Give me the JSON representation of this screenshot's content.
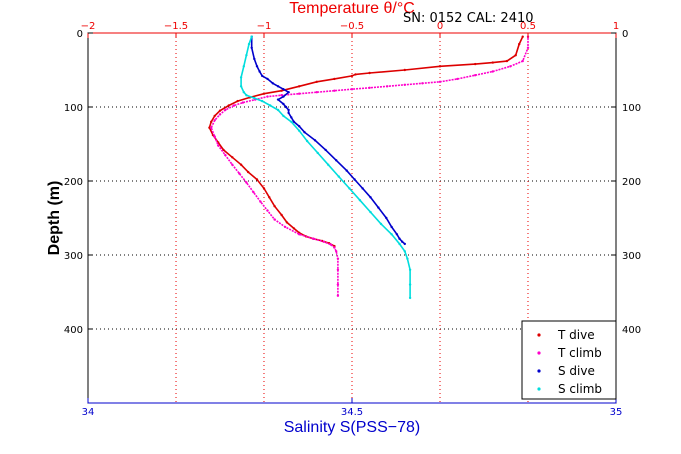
{
  "header": {
    "text": "SN: 0152  CAL: 2410"
  },
  "chart_data": {
    "type": "scatter",
    "bottom_axis": {
      "label": "Salinity S(PSS−78)",
      "range": [
        34,
        35
      ],
      "ticks": [
        "34",
        "34.5",
        "35"
      ],
      "ticks_values": [
        34,
        34.5,
        35
      ],
      "grid_values": [
        34,
        34.1667,
        34.3333,
        34.5,
        34.6667,
        34.8333,
        35
      ]
    },
    "top_axis": {
      "label": "Temperature θ/°C",
      "range": [
        -2,
        1
      ],
      "ticks": [
        "−2",
        "−1.5",
        "−1",
        "−0.5",
        "0",
        "0.5",
        "1"
      ],
      "ticks_values": [
        -2,
        -1.5,
        -1,
        -0.5,
        0,
        0.5,
        1
      ]
    },
    "y_axis": {
      "label": "Depth (m)",
      "range": [
        0,
        500
      ],
      "reversed": true,
      "ticks": [
        "0",
        "100",
        "200",
        "300",
        "400"
      ],
      "ticks_values": [
        0,
        100,
        200,
        300,
        400
      ]
    },
    "grid": true,
    "legend_position": "bottom-right",
    "series": [
      {
        "name": "T dive",
        "color": "#dd0000",
        "axis": "temperature",
        "x": [
          0.47,
          0.45,
          0.43,
          0.38,
          0.3,
          0.2,
          0.0,
          -0.2,
          -0.4,
          -0.48,
          -0.5,
          -0.6,
          -0.7,
          -0.8,
          -0.9,
          -1.0,
          -1.08,
          -1.15,
          -1.2,
          -1.25,
          -1.28,
          -1.3,
          -1.31,
          -1.29,
          -1.26,
          -1.23,
          -1.18,
          -1.13,
          -1.09,
          -1.04,
          -1.0,
          -0.97,
          -0.94,
          -0.9,
          -0.87,
          -0.83,
          -0.8,
          -0.76,
          -0.72,
          -0.67,
          -0.63,
          -0.6
        ],
        "y": [
          5,
          15,
          30,
          38,
          40,
          42,
          45,
          50,
          54,
          56,
          58,
          62,
          66,
          72,
          78,
          82,
          87,
          92,
          98,
          105,
          112,
          120,
          128,
          138,
          148,
          158,
          168,
          178,
          188,
          198,
          210,
          222,
          234,
          246,
          256,
          264,
          270,
          275,
          278,
          281,
          284,
          288
        ]
      },
      {
        "name": "T climb",
        "color": "#ff00cc",
        "axis": "temperature",
        "x": [
          -0.58,
          -0.58,
          -0.58,
          -0.58,
          -0.59,
          -0.6,
          -0.62,
          -0.66,
          -0.72,
          -0.8,
          -0.88,
          -0.94,
          -0.98,
          -1.02,
          -1.06,
          -1.1,
          -1.14,
          -1.18,
          -1.22,
          -1.26,
          -1.28,
          -1.3,
          -1.28,
          -1.25,
          -1.22,
          -1.17,
          -1.12,
          -1.05,
          -0.98,
          -0.9,
          -0.8,
          -0.7,
          -0.6,
          -0.5,
          -0.4,
          -0.3,
          -0.2,
          -0.1,
          0.0,
          0.1,
          0.2,
          0.3,
          0.4,
          0.47,
          0.5,
          0.5
        ],
        "y": [
          355,
          340,
          320,
          305,
          295,
          290,
          286,
          282,
          278,
          272,
          262,
          252,
          240,
          228,
          215,
          202,
          190,
          178,
          165,
          152,
          140,
          128,
          118,
          110,
          104,
          98,
          94,
          90,
          86,
          84,
          82,
          80,
          78,
          76,
          74,
          72,
          70,
          68,
          66,
          62,
          57,
          52,
          45,
          38,
          20,
          5
        ]
      },
      {
        "name": "S dive",
        "color": "#0000cc",
        "axis": "salinity",
        "x": [
          34.31,
          34.31,
          34.315,
          34.32,
          34.325,
          34.33,
          34.34,
          34.35,
          34.36,
          34.37,
          34.38,
          34.37,
          34.36,
          34.37,
          34.375,
          34.38,
          34.38,
          34.385,
          34.39,
          34.4,
          34.41,
          34.43,
          34.45,
          34.47,
          34.49,
          34.505,
          34.52,
          34.535,
          34.55,
          34.565,
          34.575,
          34.585,
          34.59,
          34.595,
          34.6
        ],
        "y": [
          5,
          20,
          35,
          45,
          52,
          58,
          62,
          68,
          72,
          76,
          80,
          86,
          90,
          96,
          100,
          104,
          108,
          114,
          120,
          126,
          134,
          145,
          158,
          172,
          186,
          198,
          210,
          222,
          236,
          250,
          262,
          272,
          278,
          282,
          285
        ]
      },
      {
        "name": "S climb",
        "color": "#00dddd",
        "axis": "salinity",
        "x": [
          34.61,
          34.61,
          34.61,
          34.605,
          34.6,
          34.59,
          34.575,
          34.555,
          34.535,
          34.515,
          34.495,
          34.475,
          34.455,
          34.435,
          34.415,
          34.4,
          34.385,
          34.37,
          34.36,
          34.345,
          34.33,
          34.315,
          34.3,
          34.295,
          34.29,
          34.29,
          34.295,
          34.3,
          34.305,
          34.31
        ],
        "y": [
          358,
          340,
          320,
          305,
          295,
          285,
          272,
          258,
          242,
          226,
          210,
          194,
          178,
          162,
          146,
          132,
          120,
          112,
          104,
          98,
          92,
          88,
          84,
          80,
          72,
          60,
          45,
          30,
          15,
          5
        ]
      }
    ]
  }
}
